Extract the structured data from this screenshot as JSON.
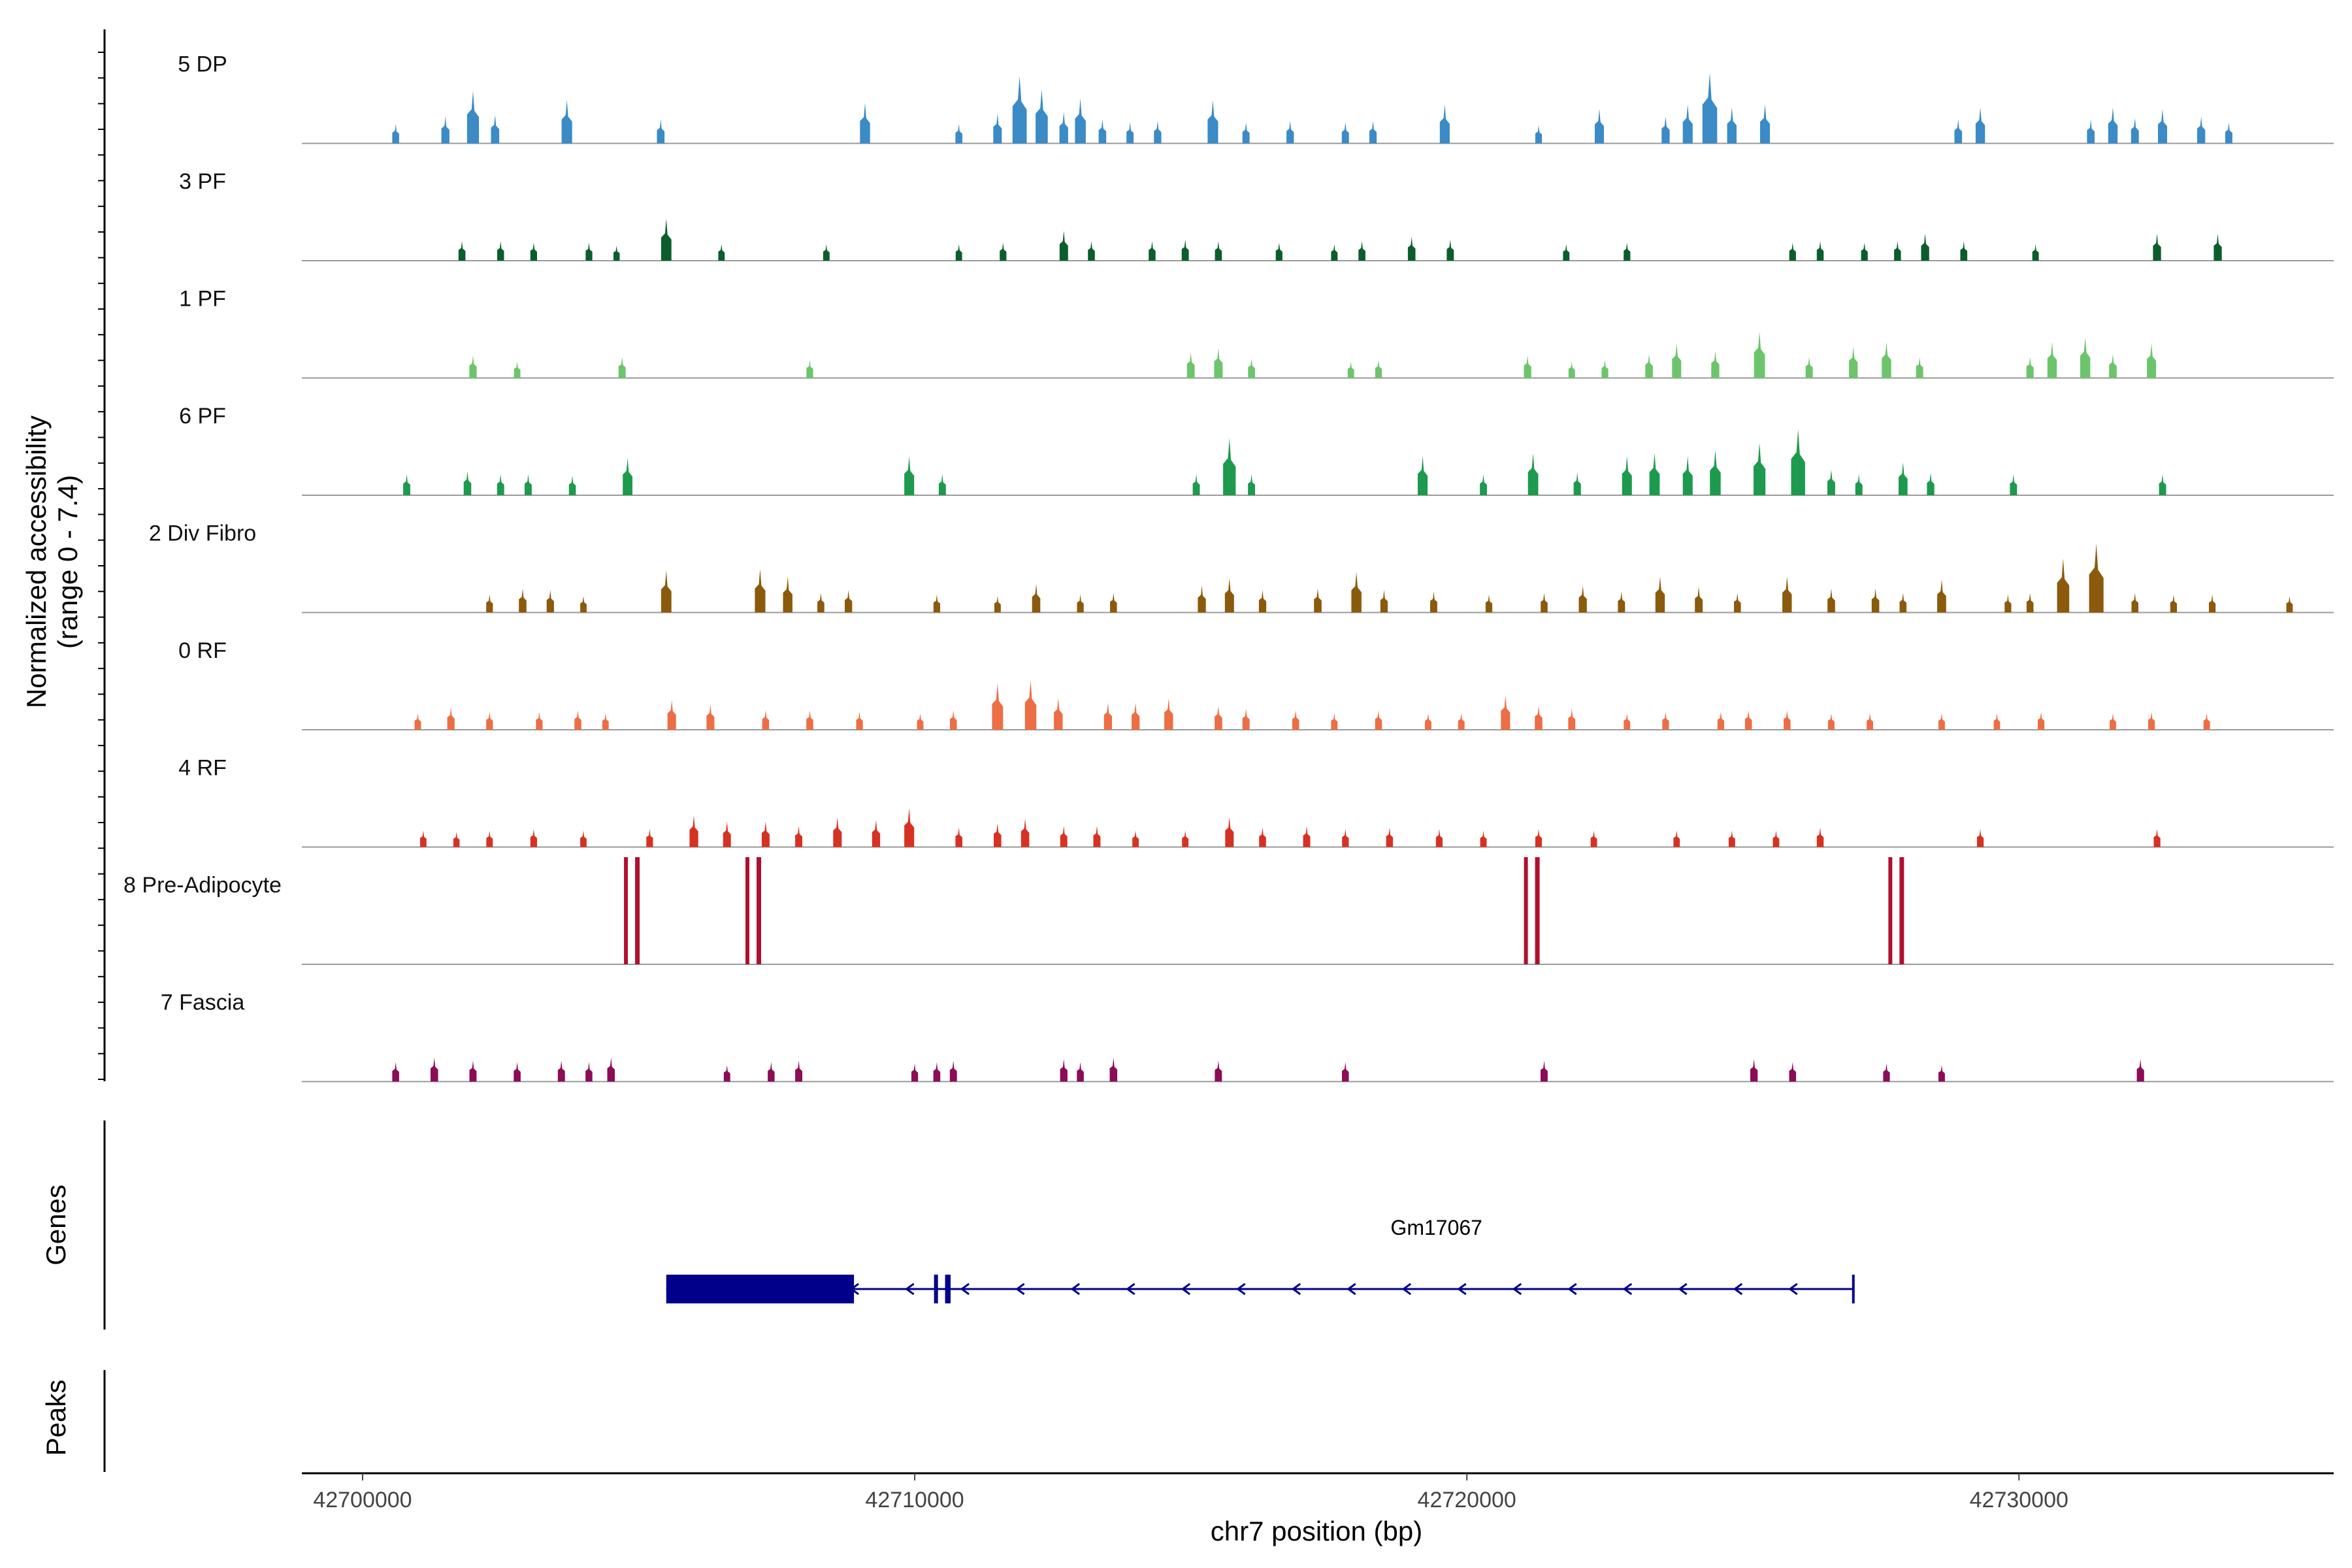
{
  "chart_data": {
    "type": "area",
    "title": "",
    "ylabel_line1": "Normalized accessibility",
    "ylabel_line2": "(range 0 - 7.4)",
    "xlabel": "chr7 position (bp)",
    "genes_label": "Genes",
    "peaks_label": "Peaks",
    "xlim": [
      42698900,
      42735700
    ],
    "ylim": [
      0,
      7.4
    ],
    "x_ticks": [
      42700000,
      42710000,
      42720000,
      42730000
    ],
    "x_tick_labels": [
      "42700000",
      "42710000",
      "42720000",
      "42730000"
    ],
    "series": [
      {
        "name": "5 DP",
        "color": "#3A8BC6",
        "peaks": [
          [
            42700600,
            1.3
          ],
          [
            42701500,
            1.8
          ],
          [
            42702000,
            3.5
          ],
          [
            42702400,
            1.9
          ],
          [
            42703700,
            2.9
          ],
          [
            42705400,
            1.6
          ],
          [
            42709100,
            2.7
          ],
          [
            42710800,
            1.3
          ],
          [
            42711500,
            2.0
          ],
          [
            42711900,
            4.5
          ],
          [
            42712300,
            3.6
          ],
          [
            42712700,
            2.1
          ],
          [
            42713000,
            3.0
          ],
          [
            42713400,
            1.6
          ],
          [
            42713900,
            1.4
          ],
          [
            42714400,
            1.5
          ],
          [
            42715400,
            2.9
          ],
          [
            42716000,
            1.4
          ],
          [
            42716800,
            1.5
          ],
          [
            42717800,
            1.4
          ],
          [
            42718300,
            1.5
          ],
          [
            42719600,
            2.6
          ],
          [
            42721300,
            1.2
          ],
          [
            42722400,
            2.3
          ],
          [
            42723600,
            1.8
          ],
          [
            42724000,
            2.6
          ],
          [
            42724400,
            4.7
          ],
          [
            42724800,
            2.4
          ],
          [
            42725400,
            2.6
          ],
          [
            42728900,
            1.6
          ],
          [
            42729300,
            2.4
          ],
          [
            42731300,
            1.6
          ],
          [
            42731700,
            2.4
          ],
          [
            42732100,
            1.7
          ],
          [
            42732600,
            2.3
          ],
          [
            42733300,
            1.8
          ],
          [
            42733800,
            1.4
          ]
        ]
      },
      {
        "name": "3 PF",
        "color": "#0B5E2B",
        "peaks": [
          [
            42701800,
            1.3
          ],
          [
            42702500,
            1.3
          ],
          [
            42703100,
            1.2
          ],
          [
            42704100,
            1.2
          ],
          [
            42704600,
            1.0
          ],
          [
            42705500,
            2.8
          ],
          [
            42706500,
            1.1
          ],
          [
            42708400,
            1.1
          ],
          [
            42710800,
            1.1
          ],
          [
            42711600,
            1.2
          ],
          [
            42712700,
            2.0
          ],
          [
            42713200,
            1.3
          ],
          [
            42714300,
            1.3
          ],
          [
            42714900,
            1.4
          ],
          [
            42715500,
            1.3
          ],
          [
            42716600,
            1.2
          ],
          [
            42717600,
            1.1
          ],
          [
            42718100,
            1.3
          ],
          [
            42719000,
            1.6
          ],
          [
            42719700,
            1.4
          ],
          [
            42721800,
            1.1
          ],
          [
            42722900,
            1.2
          ],
          [
            42725900,
            1.2
          ],
          [
            42726400,
            1.3
          ],
          [
            42727200,
            1.2
          ],
          [
            42727800,
            1.3
          ],
          [
            42728300,
            1.8
          ],
          [
            42729000,
            1.3
          ],
          [
            42730300,
            1.1
          ],
          [
            42732500,
            1.8
          ],
          [
            42733600,
            1.8
          ]
        ]
      },
      {
        "name": "1 PF",
        "color": "#6CC56B",
        "peaks": [
          [
            42702000,
            1.5
          ],
          [
            42702800,
            1.1
          ],
          [
            42704700,
            1.4
          ],
          [
            42708100,
            1.2
          ],
          [
            42715000,
            1.7
          ],
          [
            42715500,
            2.0
          ],
          [
            42716100,
            1.3
          ],
          [
            42717900,
            1.1
          ],
          [
            42718400,
            1.2
          ],
          [
            42721100,
            1.5
          ],
          [
            42721900,
            1.1
          ],
          [
            42722500,
            1.2
          ],
          [
            42723300,
            1.6
          ],
          [
            42723800,
            2.3
          ],
          [
            42724500,
            1.8
          ],
          [
            42725300,
            3.1
          ],
          [
            42726200,
            1.4
          ],
          [
            42727000,
            2.1
          ],
          [
            42727600,
            2.4
          ],
          [
            42728200,
            1.4
          ],
          [
            42730200,
            1.4
          ],
          [
            42730600,
            2.4
          ],
          [
            42731200,
            2.7
          ],
          [
            42731700,
            1.6
          ],
          [
            42732400,
            2.3
          ]
        ]
      },
      {
        "name": "6 PF",
        "color": "#1E9A4E",
        "peaks": [
          [
            42700800,
            1.4
          ],
          [
            42701900,
            1.6
          ],
          [
            42702500,
            1.4
          ],
          [
            42703000,
            1.4
          ],
          [
            42703800,
            1.3
          ],
          [
            42704800,
            2.5
          ],
          [
            42709900,
            2.6
          ],
          [
            42710500,
            1.4
          ],
          [
            42715100,
            1.4
          ],
          [
            42715700,
            3.8
          ],
          [
            42716100,
            1.4
          ],
          [
            42719200,
            2.6
          ],
          [
            42720300,
            1.4
          ],
          [
            42721200,
            2.8
          ],
          [
            42722000,
            1.5
          ],
          [
            42722900,
            2.6
          ],
          [
            42723400,
            2.8
          ],
          [
            42724000,
            2.6
          ],
          [
            42724500,
            3.0
          ],
          [
            42725300,
            3.5
          ],
          [
            42726000,
            4.4
          ],
          [
            42726600,
            1.7
          ],
          [
            42727100,
            1.4
          ],
          [
            42727900,
            2.2
          ],
          [
            42728400,
            1.5
          ],
          [
            42729900,
            1.4
          ],
          [
            42732600,
            1.4
          ]
        ]
      },
      {
        "name": "2 Div Fibro",
        "color": "#8B5A0C",
        "peaks": [
          [
            42702300,
            1.2
          ],
          [
            42702900,
            1.6
          ],
          [
            42703400,
            1.5
          ],
          [
            42704000,
            1.1
          ],
          [
            42705500,
            2.8
          ],
          [
            42707200,
            2.9
          ],
          [
            42707700,
            2.4
          ],
          [
            42708300,
            1.3
          ],
          [
            42708800,
            1.5
          ],
          [
            42710400,
            1.2
          ],
          [
            42711500,
            1.1
          ],
          [
            42712200,
            1.9
          ],
          [
            42713000,
            1.2
          ],
          [
            42713600,
            1.3
          ],
          [
            42715200,
            1.8
          ],
          [
            42715700,
            2.3
          ],
          [
            42716300,
            1.5
          ],
          [
            42717300,
            1.6
          ],
          [
            42718000,
            2.7
          ],
          [
            42718500,
            1.5
          ],
          [
            42719400,
            1.4
          ],
          [
            42720400,
            1.2
          ],
          [
            42721400,
            1.3
          ],
          [
            42722100,
            1.8
          ],
          [
            42722800,
            1.4
          ],
          [
            42723500,
            2.4
          ],
          [
            42724200,
            1.7
          ],
          [
            42724900,
            1.3
          ],
          [
            42725800,
            2.4
          ],
          [
            42726600,
            1.6
          ],
          [
            42727400,
            1.6
          ],
          [
            42727900,
            1.3
          ],
          [
            42728600,
            2.2
          ],
          [
            42729800,
            1.2
          ],
          [
            42730200,
            1.3
          ],
          [
            42730800,
            3.6
          ],
          [
            42731400,
            4.6
          ],
          [
            42732100,
            1.3
          ],
          [
            42732800,
            1.2
          ],
          [
            42733500,
            1.2
          ],
          [
            42734900,
            1.1
          ]
        ]
      },
      {
        "name": "0 RF",
        "color": "#EC6E45",
        "peaks": [
          [
            42701000,
            1.1
          ],
          [
            42701600,
            1.5
          ],
          [
            42702300,
            1.2
          ],
          [
            42703200,
            1.2
          ],
          [
            42703900,
            1.3
          ],
          [
            42704400,
            1.1
          ],
          [
            42705600,
            2.0
          ],
          [
            42706300,
            1.7
          ],
          [
            42707300,
            1.3
          ],
          [
            42708100,
            1.3
          ],
          [
            42709000,
            1.2
          ],
          [
            42710100,
            1.1
          ],
          [
            42710700,
            1.3
          ],
          [
            42711500,
            3.1
          ],
          [
            42712100,
            3.3
          ],
          [
            42712600,
            2.1
          ],
          [
            42713500,
            1.8
          ],
          [
            42714000,
            1.8
          ],
          [
            42714600,
            2.1
          ],
          [
            42715500,
            1.6
          ],
          [
            42716000,
            1.4
          ],
          [
            42716900,
            1.3
          ],
          [
            42717600,
            1.1
          ],
          [
            42718400,
            1.3
          ],
          [
            42719300,
            1.1
          ],
          [
            42719900,
            1.1
          ],
          [
            42720700,
            2.3
          ],
          [
            42721300,
            1.6
          ],
          [
            42721900,
            1.4
          ],
          [
            42722900,
            1.1
          ],
          [
            42723600,
            1.2
          ],
          [
            42724600,
            1.2
          ],
          [
            42725100,
            1.3
          ],
          [
            42725800,
            1.3
          ],
          [
            42726600,
            1.1
          ],
          [
            42727300,
            1.1
          ],
          [
            42728600,
            1.1
          ],
          [
            42729600,
            1.1
          ],
          [
            42730400,
            1.2
          ],
          [
            42731700,
            1.1
          ],
          [
            42732400,
            1.2
          ],
          [
            42733400,
            1.1
          ]
        ]
      },
      {
        "name": "4 RF",
        "color": "#D63222",
        "peaks": [
          [
            42701100,
            1.1
          ],
          [
            42701700,
            1.0
          ],
          [
            42702300,
            1.1
          ],
          [
            42703100,
            1.2
          ],
          [
            42704000,
            1.1
          ],
          [
            42705200,
            1.2
          ],
          [
            42706000,
            2.1
          ],
          [
            42706600,
            1.7
          ],
          [
            42707300,
            1.7
          ],
          [
            42707900,
            1.4
          ],
          [
            42708600,
            2.0
          ],
          [
            42709300,
            1.8
          ],
          [
            42709900,
            2.6
          ],
          [
            42710800,
            1.3
          ],
          [
            42711500,
            1.6
          ],
          [
            42712000,
            1.9
          ],
          [
            42712700,
            1.4
          ],
          [
            42713300,
            1.4
          ],
          [
            42714000,
            1.1
          ],
          [
            42714900,
            1.1
          ],
          [
            42715700,
            2.0
          ],
          [
            42716300,
            1.3
          ],
          [
            42717100,
            1.4
          ],
          [
            42717800,
            1.2
          ],
          [
            42718600,
            1.3
          ],
          [
            42719500,
            1.2
          ],
          [
            42720300,
            1.1
          ],
          [
            42721300,
            1.2
          ],
          [
            42722300,
            1.1
          ],
          [
            42723800,
            1.1
          ],
          [
            42724800,
            1.1
          ],
          [
            42725600,
            1.1
          ],
          [
            42726400,
            1.3
          ],
          [
            42729300,
            1.2
          ],
          [
            42732500,
            1.2
          ]
        ]
      },
      {
        "name": "8 Pre-Adipocyte",
        "color": "#B0102F",
        "peaks": [
          [
            42704900,
            7.4
          ],
          [
            42707100,
            7.4
          ],
          [
            42721200,
            7.4
          ],
          [
            42727800,
            7.4
          ]
        ]
      },
      {
        "name": "7 Fascia",
        "color": "#8C0C56",
        "peaks": [
          [
            42700600,
            1.3
          ],
          [
            42701300,
            1.6
          ],
          [
            42702000,
            1.4
          ],
          [
            42702800,
            1.3
          ],
          [
            42703600,
            1.4
          ],
          [
            42704100,
            1.3
          ],
          [
            42704500,
            1.6
          ],
          [
            42706600,
            1.1
          ],
          [
            42707400,
            1.3
          ],
          [
            42707900,
            1.4
          ],
          [
            42710000,
            1.2
          ],
          [
            42710400,
            1.3
          ],
          [
            42710700,
            1.4
          ],
          [
            42712700,
            1.5
          ],
          [
            42713000,
            1.3
          ],
          [
            42713600,
            1.6
          ],
          [
            42715500,
            1.4
          ],
          [
            42717800,
            1.3
          ],
          [
            42721400,
            1.4
          ],
          [
            42725200,
            1.5
          ],
          [
            42725900,
            1.3
          ],
          [
            42727600,
            1.2
          ],
          [
            42728600,
            1.1
          ],
          [
            42732200,
            1.5
          ]
        ]
      }
    ],
    "genes": [
      {
        "name": "Gm17067",
        "color": "#00008B",
        "start": 42705500,
        "end": 42727000,
        "strand": "-",
        "exons": [
          [
            42705500,
            42708900
          ],
          [
            42710350,
            42710400
          ],
          [
            42710550,
            42710650
          ]
        ]
      }
    ],
    "peaks_track": []
  }
}
